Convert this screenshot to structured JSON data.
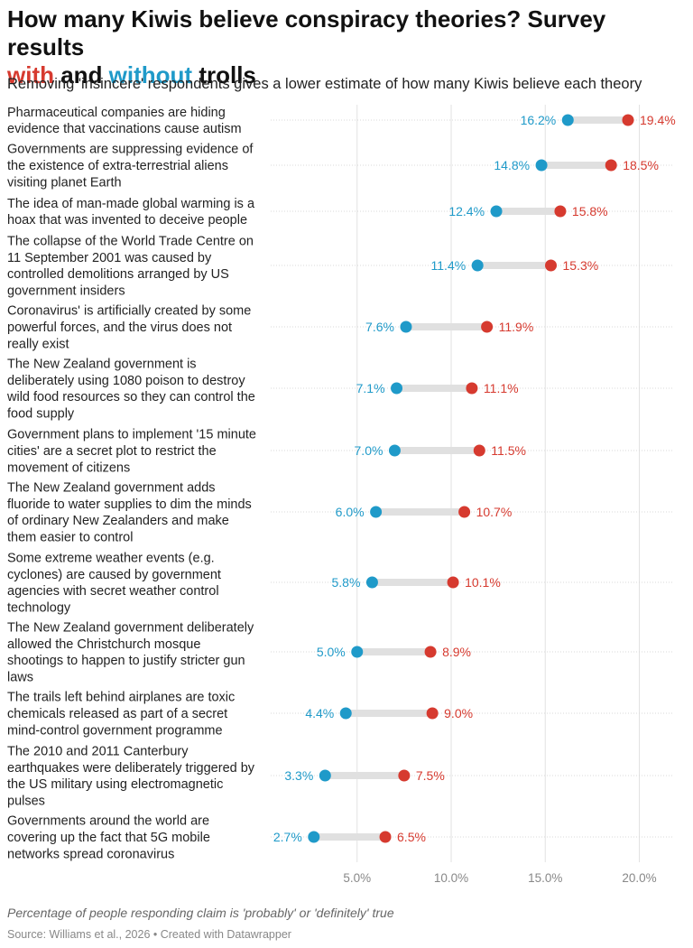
{
  "title": {
    "line1": "How many Kiwis believe conspiracy theories? Survey results",
    "with_word": "with",
    "and_word": " and ",
    "without_word": "without",
    "end_word": " trolls"
  },
  "subtitle": "Removing 'insincere' respondents gives a lower estimate of how many Kiwis believe each theory",
  "notes": "Percentage of people responding claim is 'probably' or 'definitely' true",
  "source": "Source: Williams et al., 2026 • Created with Datawrapper",
  "colors": {
    "with": "#d63a2f",
    "without": "#1f9ac9",
    "range_bar": "#e0e0e0",
    "grid": "#e2e2e2"
  },
  "chart_data": {
    "type": "range-plot",
    "xlim": [
      0,
      22
    ],
    "x_ticks": [
      5,
      10,
      15,
      20
    ],
    "x_tick_labels": [
      "5.0%",
      "10.0%",
      "15.0%",
      "20.0%"
    ],
    "grid": true,
    "categories": [
      [
        "Pharmaceutical companies are hiding",
        "evidence that vaccinations cause autism"
      ],
      [
        "Governments are suppressing evidence of",
        "the existence of extra-terrestrial aliens",
        "visiting planet Earth"
      ],
      [
        "The idea of man-made global warming is a",
        "hoax that was invented to deceive people"
      ],
      [
        "The collapse of the World Trade Centre on",
        "11 September 2001 was caused by",
        "controlled demolitions arranged by US",
        "government insiders"
      ],
      [
        "Coronavirus' is artificially created by some",
        "powerful forces, and the virus does not",
        "really exist"
      ],
      [
        "The New Zealand government is",
        "deliberately using 1080 poison to destroy",
        "wild food resources so they can control the",
        "food supply"
      ],
      [
        "Government plans to implement '15 minute",
        "cities' are a secret plot to restrict the",
        "movement of citizens"
      ],
      [
        "The New Zealand government adds",
        "fluoride to water supplies to dim the minds",
        "of ordinary New Zealanders and make",
        "them easier to control"
      ],
      [
        "Some extreme weather events (e.g.",
        "cyclones) are caused by government",
        "agencies with secret weather control",
        "technology"
      ],
      [
        "The New Zealand government deliberately",
        "allowed the Christchurch mosque",
        "shootings to happen to justify stricter gun",
        "laws"
      ],
      [
        "The trails left behind airplanes are toxic",
        "chemicals released as part of a secret",
        "mind-control government programme"
      ],
      [
        "The 2010 and 2011 Canterbury",
        "earthquakes were deliberately triggered by",
        "the US military using electromagnetic",
        "pulses"
      ],
      [
        "Governments around the world are",
        "covering up the fact that 5G mobile",
        "networks spread coronavirus"
      ]
    ],
    "series": [
      {
        "key": "with",
        "values": [
          19.4,
          18.5,
          15.8,
          15.3,
          11.9,
          11.1,
          11.5,
          10.7,
          10.1,
          8.9,
          9.0,
          7.5,
          6.5
        ],
        "labels": [
          "19.4%",
          "18.5%",
          "15.8%",
          "15.3%",
          "11.9%",
          "11.1%",
          "11.5%",
          "10.7%",
          "10.1%",
          "8.9%",
          "9.0%",
          "7.5%",
          "6.5%"
        ]
      },
      {
        "key": "without",
        "values": [
          16.2,
          14.8,
          12.4,
          11.4,
          7.6,
          7.1,
          7.0,
          6.0,
          5.8,
          5.0,
          4.4,
          3.3,
          2.7
        ],
        "labels": [
          "16.2%",
          "14.8%",
          "12.4%",
          "11.4%",
          "7.6%",
          "7.1%",
          "7.0%",
          "6.0%",
          "5.8%",
          "5.0%",
          "4.4%",
          "3.3%",
          "2.7%"
        ]
      }
    ]
  }
}
